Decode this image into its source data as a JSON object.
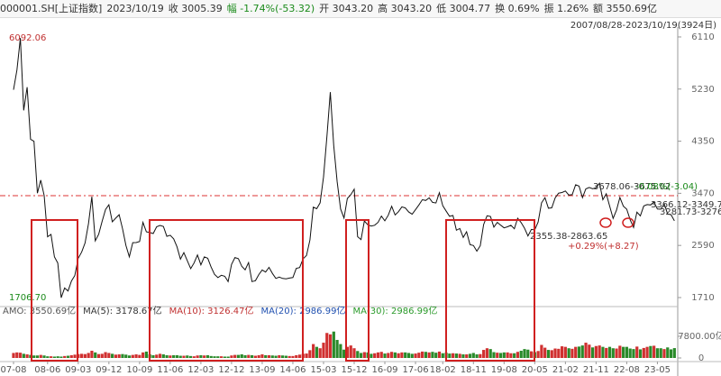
{
  "header": [
    {
      "text": "000001.SH[上证指数]",
      "color": "#333"
    },
    {
      "text": "2023/10/19",
      "color": "#333"
    },
    {
      "text": "收 3005.39",
      "color": "#333"
    },
    {
      "text": "幅 -1.74%(-53.32)",
      "color": "#1a8a1a"
    },
    {
      "text": "开 3043.20",
      "color": "#333"
    },
    {
      "text": "高 3043.20",
      "color": "#333"
    },
    {
      "text": "低 3004.77",
      "color": "#333"
    },
    {
      "text": "换 0.69%",
      "color": "#333"
    },
    {
      "text": "振 1.26%",
      "color": "#333"
    },
    {
      "text": "额 3550.69亿",
      "color": "#333"
    }
  ],
  "range": "2007/08/28-2023/10/19(3924日)",
  "legend": [
    {
      "text": "AMO: 3550.69亿",
      "color": "#555"
    },
    {
      "text": "MA(5): 3178.67亿",
      "color": "#333"
    },
    {
      "text": "MA(10): 3126.47亿",
      "color": "#c03030"
    },
    {
      "text": "MA(20): 2986.99亿",
      "color": "#2050b0"
    },
    {
      "text": "MA(30): 2986.99亿",
      "color": "#2a9a2a"
    }
  ],
  "annotations": [
    {
      "text": "6092.06",
      "color": "#c03030"
    },
    {
      "text": "1706.70",
      "color": "#1a8a1a"
    },
    {
      "text": "3678.06-3675.02",
      "color": "#333"
    },
    {
      "text": "-0.08%(-3.04)",
      "color": "#1a8a1a"
    },
    {
      "text": "3366.12-3349.72",
      "color": "#333"
    },
    {
      "text": "3281.73-3276.67",
      "color": "#333"
    },
    {
      "text": "2355.38-2863.65",
      "color": "#333"
    },
    {
      "text": "+0.29%(+8.27)",
      "color": "#c03030"
    }
  ],
  "chart_data": [
    {
      "type": "line",
      "color": "#111",
      "x": [
        "07-08",
        "07-09",
        "07-10",
        "07-11",
        "07-12",
        "08-01",
        "08-02",
        "08-03",
        "08-04",
        "08-05",
        "08-06",
        "08-07",
        "08-08",
        "08-09",
        "08-10",
        "08-11",
        "08-12",
        "09-01",
        "09-02",
        "09-03",
        "09-04",
        "09-05",
        "09-06",
        "09-07",
        "09-08",
        "09-09",
        "09-10",
        "09-11",
        "09-12",
        "10-01",
        "10-02",
        "10-03",
        "10-04",
        "10-05",
        "10-06",
        "10-07",
        "10-08",
        "10-09",
        "10-10",
        "10-11",
        "10-12",
        "11-01",
        "11-02",
        "11-03",
        "11-04",
        "11-05",
        "11-06",
        "11-07",
        "11-08",
        "11-09",
        "11-10",
        "11-11",
        "11-12",
        "12-01",
        "12-02",
        "12-03",
        "12-04",
        "12-05",
        "12-06",
        "12-07",
        "12-08",
        "12-09",
        "12-10",
        "12-11",
        "12-12",
        "13-01",
        "13-02",
        "13-03",
        "13-04",
        "13-05",
        "13-06",
        "13-07",
        "13-08",
        "13-09",
        "13-10",
        "13-11",
        "13-12",
        "14-01",
        "14-02",
        "14-03",
        "14-04",
        "14-05",
        "14-06",
        "14-07",
        "14-08",
        "14-09",
        "14-10",
        "14-11",
        "14-12",
        "15-01",
        "15-02",
        "15-03",
        "15-04",
        "15-05",
        "15-06",
        "15-07",
        "15-08",
        "15-09",
        "15-10",
        "15-11",
        "15-12",
        "16-01",
        "16-02",
        "16-03",
        "16-04",
        "16-05",
        "16-06",
        "16-07",
        "16-08",
        "16-09",
        "16-10",
        "16-11",
        "16-12",
        "17-01",
        "17-02",
        "17-03",
        "17-04",
        "17-05",
        "17-06",
        "17-07",
        "17-08",
        "17-09",
        "17-10",
        "17-11",
        "17-12",
        "18-01",
        "18-02",
        "18-03",
        "18-04",
        "18-05",
        "18-06",
        "18-07",
        "18-08",
        "18-09",
        "18-10",
        "18-11",
        "18-12",
        "19-01",
        "19-02",
        "19-03",
        "19-04",
        "19-05",
        "19-06",
        "19-07",
        "19-08",
        "19-09",
        "19-10",
        "19-11",
        "19-12",
        "20-01",
        "20-02",
        "20-03",
        "20-04",
        "20-05",
        "20-06",
        "20-07",
        "20-08",
        "20-09",
        "20-10",
        "20-11",
        "20-12",
        "21-01",
        "21-02",
        "21-03",
        "21-04",
        "21-05",
        "21-06",
        "21-07",
        "21-08",
        "21-09",
        "21-10",
        "21-11",
        "21-12",
        "22-01",
        "22-02",
        "22-03",
        "22-04",
        "22-05",
        "22-06",
        "22-07",
        "22-08",
        "22-09",
        "22-10",
        "22-11",
        "22-12",
        "23-01",
        "23-02",
        "23-03",
        "23-04",
        "23-05",
        "23-06",
        "23-07",
        "23-08",
        "23-09",
        "23-10"
      ],
      "values": [
        5218,
        5552,
        6092,
        4871,
        5261,
        4383,
        4348,
        3472,
        3693,
        3433,
        2736,
        2775,
        2397,
        2293,
        1707,
        1871,
        1821,
        1990,
        2082,
        2373,
        2477,
        2632,
        2959,
        3412,
        2667,
        2779,
        2996,
        3195,
        3277,
        2989,
        3051,
        3109,
        2870,
        2592,
        2398,
        2637,
        2638,
        2655,
        2979,
        2820,
        2808,
        2790,
        2905,
        2928,
        2911,
        2743,
        2762,
        2701,
        2567,
        2359,
        2468,
        2333,
        2199,
        2293,
        2428,
        2263,
        2397,
        2373,
        2226,
        2103,
        2047,
        2086,
        2069,
        1980,
        2269,
        2385,
        2366,
        2237,
        2178,
        2301,
        1979,
        1994,
        2098,
        2175,
        2141,
        2220,
        2116,
        2033,
        2056,
        2033,
        2026,
        2039,
        2048,
        2201,
        2217,
        2364,
        2420,
        2683,
        3235,
        3210,
        3310,
        3748,
        4442,
        5178,
        4277,
        3664,
        3206,
        3053,
        3383,
        3445,
        3539,
        2738,
        2688,
        3004,
        2938,
        2917,
        2930,
        2979,
        3085,
        3005,
        3100,
        3250,
        3104,
        3159,
        3242,
        3223,
        3155,
        3117,
        3192,
        3273,
        3361,
        3349,
        3393,
        3317,
        3307,
        3481,
        3259,
        3169,
        3082,
        3095,
        2847,
        2876,
        2725,
        2821,
        2603,
        2588,
        2494,
        2585,
        2941,
        3091,
        3078,
        2899,
        2979,
        2933,
        2886,
        2905,
        2929,
        2871,
        3050,
        2977,
        2880,
        2750,
        2860,
        2852,
        2985,
        3310,
        3396,
        3218,
        3225,
        3392,
        3473,
        3483,
        3509,
        3441,
        3447,
        3615,
        3591,
        3397,
        3544,
        3568,
        3547,
        3564,
        3640,
        3361,
        3462,
        3252,
        3047,
        3186,
        3399,
        3253,
        3202,
        3024,
        2893,
        3151,
        3089,
        3256,
        3280,
        3273,
        3323,
        3205,
        3202,
        3291,
        3120,
        3110,
        3005
      ],
      "ylim": [
        1588,
        6277
      ],
      "yticks": [
        1710,
        2590,
        3470,
        4350,
        5230,
        6110
      ],
      "xticks": [
        "07-08",
        "08-06",
        "09-03",
        "09-12",
        "10-09",
        "11-06",
        "12-03",
        "12-12",
        "13-09",
        "14-06",
        "15-03",
        "15-12",
        "16-09",
        "17-06",
        "18-02",
        "18-11",
        "19-08",
        "20-05",
        "21-02",
        "21-11",
        "22-08",
        "23-05"
      ]
    },
    {
      "type": "bar",
      "up_color": "#d03030",
      "down_color": "#2a8a2a",
      "values": [
        1800,
        2000,
        1900,
        1500,
        1300,
        1100,
        900,
        900,
        1100,
        900,
        600,
        600,
        500,
        600,
        500,
        700,
        800,
        1000,
        1200,
        1400,
        1500,
        1400,
        1800,
        2600,
        2000,
        1400,
        1500,
        2100,
        1800,
        1500,
        1200,
        1300,
        1400,
        1200,
        900,
        1100,
        1300,
        1100,
        2000,
        2300,
        1300,
        1000,
        1200,
        1500,
        1300,
        1000,
        900,
        1000,
        1000,
        800,
        800,
        900,
        700,
        600,
        900,
        1000,
        900,
        1000,
        700,
        600,
        600,
        600,
        500,
        500,
        900,
        1100,
        1100,
        1300,
        1000,
        1100,
        1000,
        800,
        1000,
        1300,
        1000,
        1000,
        900,
        800,
        1000,
        900,
        800,
        700,
        700,
        1000,
        1200,
        1500,
        1600,
        2800,
        5000,
        4000,
        3500,
        5500,
        9000,
        8500,
        9500,
        6500,
        5000,
        3000,
        4000,
        4500,
        3500,
        2500,
        1800,
        2100,
        2000,
        1500,
        1700,
        2000,
        2200,
        1600,
        1800,
        2200,
        2000,
        1700,
        2000,
        2000,
        1800,
        1500,
        1600,
        1900,
        2300,
        2200,
        2000,
        2200,
        1900,
        2300,
        1700,
        1900,
        1600,
        1700,
        1600,
        1500,
        1300,
        1300,
        1500,
        1800,
        1300,
        1400,
        2900,
        3500,
        3200,
        2100,
        1900,
        1800,
        2000,
        2000,
        1700,
        1700,
        2200,
        2600,
        3200,
        3000,
        2400,
        2100,
        2500,
        4700,
        3700,
        2900,
        2800,
        3400,
        3300,
        4200,
        4000,
        3500,
        3300,
        4000,
        4100,
        4500,
        5500,
        4800,
        3800,
        4300,
        4500,
        4000,
        3600,
        4000,
        3500,
        3400,
        4400,
        4000,
        4000,
        3400,
        3200,
        4100,
        3100,
        3600,
        4000,
        4300,
        4400,
        3500,
        3500,
        3200,
        3800,
        3100,
        3550
      ],
      "ylim": [
        0,
        14600
      ],
      "yticks": [
        0,
        {
          "value": 7800,
          "label": "7800.00亿"
        }
      ]
    }
  ]
}
